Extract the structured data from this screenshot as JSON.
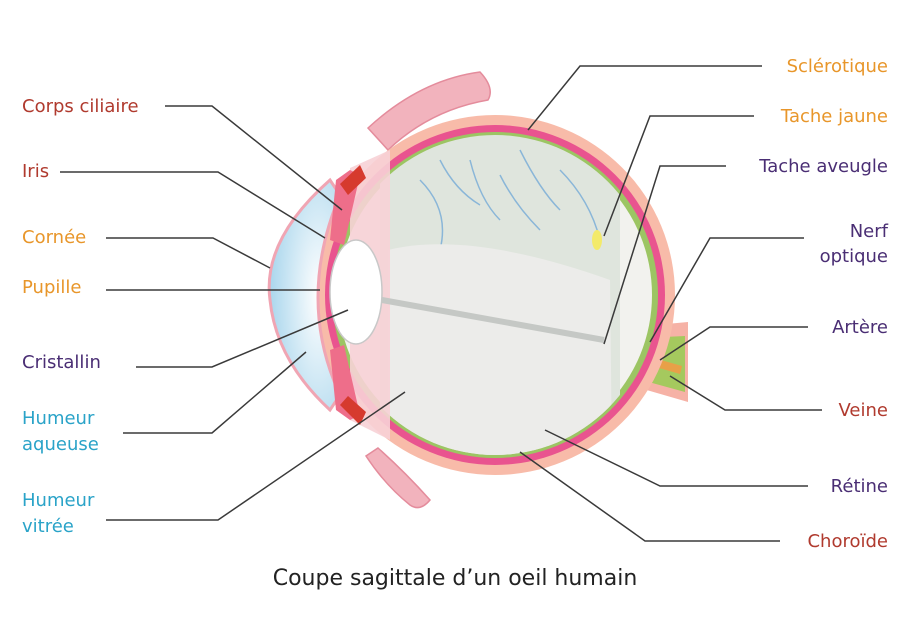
{
  "colors": {
    "red": "#b03a2e",
    "orange": "#e8962a",
    "purple": "#4a2e74",
    "blue": "#2aa3c8",
    "leader": "#3a3a3a"
  },
  "labels": {
    "corps_ciliaire": "Corps ciliaire",
    "iris": "Iris",
    "cornee": "Cornée",
    "pupille": "Pupille",
    "cristallin": "Cristallin",
    "humeur_aqueuse_1": "Humeur",
    "humeur_aqueuse_2": "aqueuse",
    "humeur_vitree_1": "Humeur",
    "humeur_vitree_2": "vitrée",
    "sclerotique": "Sclérotique",
    "tache_jaune": "Tache jaune",
    "tache_aveugle": "Tache aveugle",
    "nerf_1": "Nerf",
    "nerf_2": "optique",
    "artere": "Artère",
    "veine": "Veine",
    "retine": "Rétine",
    "choroide": "Choroïde"
  },
  "caption": "Coupe sagittale d’un oeil humain"
}
